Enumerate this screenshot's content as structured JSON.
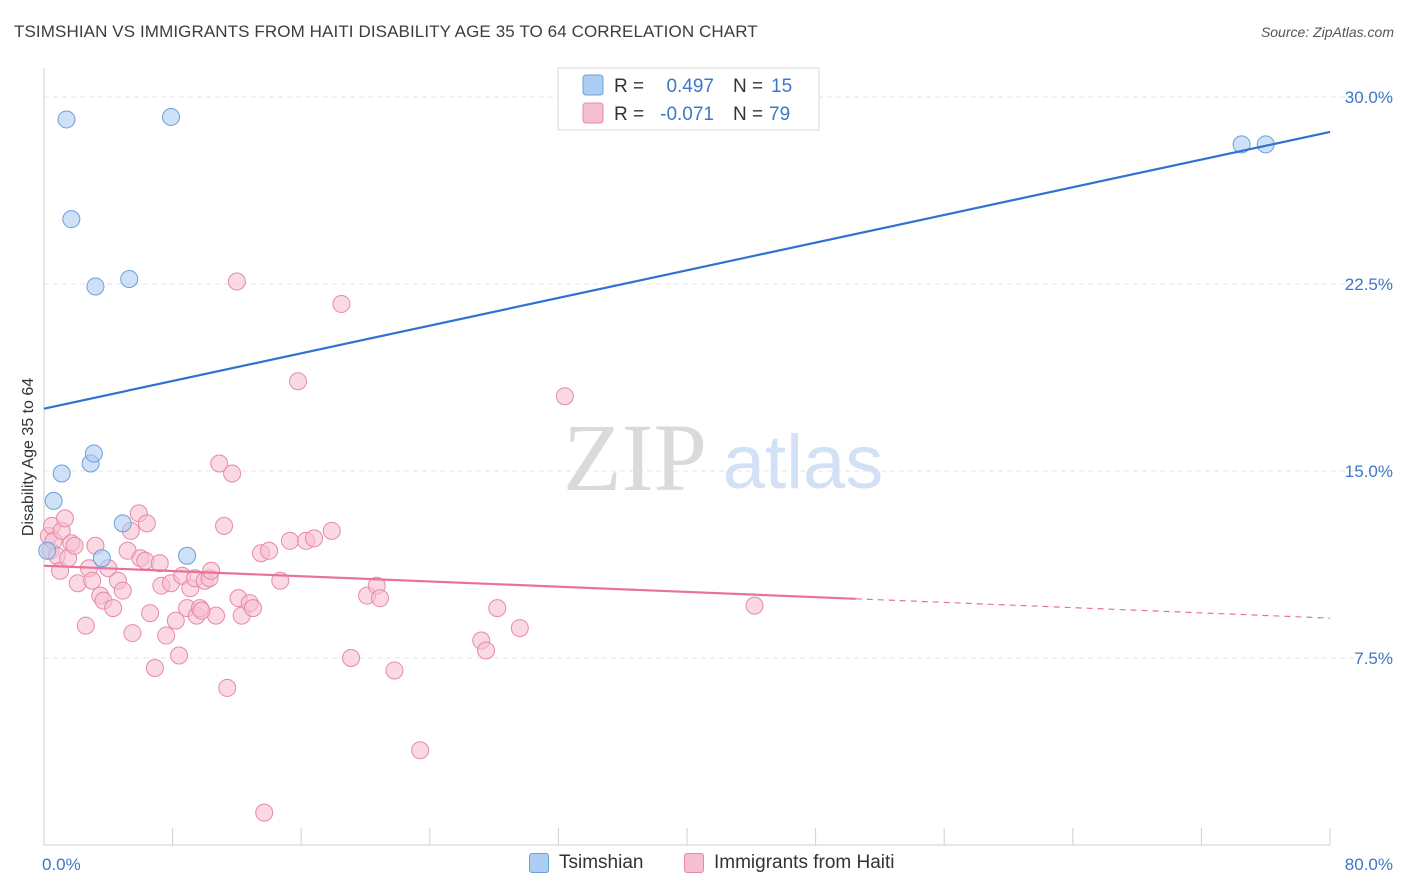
{
  "title": "TSIMSHIAN VS IMMIGRANTS FROM HAITI DISABILITY AGE 35 TO 64 CORRELATION CHART",
  "source": "Source: ZipAtlas.com",
  "watermark": {
    "zip": "ZIP",
    "atlas": "atlas"
  },
  "colors": {
    "blue_fill": "#aecdf2",
    "blue_stroke": "#6b9fdb",
    "blue_line": "#2f72cf",
    "pink_fill": "#f6bfd0",
    "pink_stroke": "#e58aa8",
    "pink_line": "#e8729a",
    "value_text": "#3d77c9",
    "grid": "#e3e3e3"
  },
  "stats_legend": {
    "rows": [
      {
        "r_label": "R =",
        "r_value": "0.497",
        "n_label": "N =",
        "n_value": "15"
      },
      {
        "r_label": "R =",
        "r_value": "-0.071",
        "n_label": "N =",
        "n_value": "79"
      }
    ]
  },
  "chart_data": {
    "type": "scatter",
    "title": "TSIMSHIAN VS IMMIGRANTS FROM HAITI DISABILITY AGE 35 TO 64 CORRELATION CHART",
    "xlabel": "",
    "ylabel": "Disability Age 35 to 64",
    "xlim": [
      0,
      80
    ],
    "ylim": [
      0,
      31.5
    ],
    "x_tick_labels": {
      "min": "0.0%",
      "max": "80.0%"
    },
    "y_ticks": [
      {
        "value": 7.5,
        "label": "7.5%"
      },
      {
        "value": 15.0,
        "label": "15.0%"
      },
      {
        "value": 22.5,
        "label": "22.5%"
      },
      {
        "value": 30.0,
        "label": "30.0%"
      }
    ],
    "grid": true,
    "legend_position": "bottom-center",
    "series": [
      {
        "name": "Tsimshian",
        "color": "blue",
        "r": 0.497,
        "n": 15,
        "trend": {
          "x0": 0,
          "y0": 17.5,
          "x1": 80,
          "y1": 28.6,
          "dashed_from": null
        },
        "points": [
          [
            0.2,
            11.8
          ],
          [
            0.6,
            13.8
          ],
          [
            1.1,
            14.9
          ],
          [
            1.4,
            29.1
          ],
          [
            1.7,
            25.1
          ],
          [
            2.9,
            15.3
          ],
          [
            3.1,
            15.7
          ],
          [
            3.2,
            22.4
          ],
          [
            3.6,
            11.5
          ],
          [
            4.9,
            12.9
          ],
          [
            5.3,
            22.7
          ],
          [
            7.9,
            29.2
          ],
          [
            8.9,
            11.6
          ],
          [
            74.5,
            28.1
          ],
          [
            76.0,
            28.1
          ]
        ]
      },
      {
        "name": "Immigrants from Haiti",
        "color": "pink",
        "r": -0.071,
        "n": 79,
        "trend": {
          "x0": 0,
          "y0": 11.2,
          "x1": 80,
          "y1": 9.1,
          "dashed_from": 50.5
        },
        "points": [
          [
            0.3,
            12.4
          ],
          [
            0.4,
            11.8
          ],
          [
            0.5,
            12.8
          ],
          [
            0.6,
            12.2
          ],
          [
            0.8,
            11.6
          ],
          [
            1.0,
            11.0
          ],
          [
            1.1,
            12.6
          ],
          [
            1.3,
            13.1
          ],
          [
            1.5,
            11.5
          ],
          [
            1.7,
            12.1
          ],
          [
            2.1,
            10.5
          ],
          [
            2.6,
            8.8
          ],
          [
            2.8,
            11.1
          ],
          [
            3.0,
            10.6
          ],
          [
            3.2,
            12.0
          ],
          [
            3.5,
            10.0
          ],
          [
            3.7,
            9.8
          ],
          [
            4.0,
            11.1
          ],
          [
            4.3,
            9.5
          ],
          [
            4.6,
            10.6
          ],
          [
            4.9,
            10.2
          ],
          [
            5.2,
            11.8
          ],
          [
            5.4,
            12.6
          ],
          [
            5.5,
            8.5
          ],
          [
            5.9,
            13.3
          ],
          [
            6.0,
            11.5
          ],
          [
            6.3,
            11.4
          ],
          [
            6.4,
            12.9
          ],
          [
            6.6,
            9.3
          ],
          [
            6.9,
            7.1
          ],
          [
            7.2,
            11.3
          ],
          [
            7.3,
            10.4
          ],
          [
            7.6,
            8.4
          ],
          [
            7.9,
            10.5
          ],
          [
            8.2,
            9.0
          ],
          [
            8.4,
            7.6
          ],
          [
            8.6,
            10.8
          ],
          [
            8.9,
            9.5
          ],
          [
            9.1,
            10.3
          ],
          [
            9.4,
            10.7
          ],
          [
            9.5,
            9.2
          ],
          [
            9.7,
            9.5
          ],
          [
            10.0,
            10.6
          ],
          [
            10.3,
            10.7
          ],
          [
            10.4,
            11.0
          ],
          [
            10.7,
            9.2
          ],
          [
            10.9,
            15.3
          ],
          [
            11.2,
            12.8
          ],
          [
            11.4,
            6.3
          ],
          [
            11.7,
            14.9
          ],
          [
            12.0,
            22.6
          ],
          [
            12.1,
            9.9
          ],
          [
            12.3,
            9.2
          ],
          [
            12.8,
            9.7
          ],
          [
            13.0,
            9.5
          ],
          [
            13.5,
            11.7
          ],
          [
            13.7,
            1.3
          ],
          [
            14.0,
            11.8
          ],
          [
            14.7,
            10.6
          ],
          [
            15.3,
            12.2
          ],
          [
            15.8,
            18.6
          ],
          [
            16.3,
            12.2
          ],
          [
            16.8,
            12.3
          ],
          [
            17.9,
            12.6
          ],
          [
            18.5,
            21.7
          ],
          [
            19.1,
            7.5
          ],
          [
            20.1,
            10.0
          ],
          [
            20.7,
            10.4
          ],
          [
            20.9,
            9.9
          ],
          [
            21.8,
            7.0
          ],
          [
            23.4,
            3.8
          ],
          [
            27.2,
            8.2
          ],
          [
            27.5,
            7.8
          ],
          [
            28.2,
            9.5
          ],
          [
            29.6,
            8.7
          ],
          [
            32.4,
            18.0
          ],
          [
            44.2,
            9.6
          ],
          [
            1.9,
            12.0
          ],
          [
            9.8,
            9.4
          ]
        ]
      }
    ]
  }
}
